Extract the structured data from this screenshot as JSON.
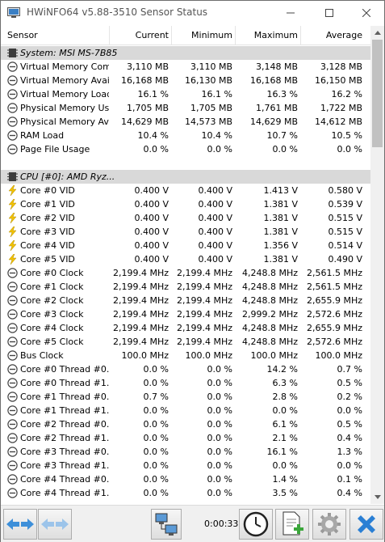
{
  "window": {
    "title": "HWiNFO64 v5.88-3510 Sensor Status"
  },
  "columns": {
    "sensor": "Sensor",
    "current": "Current",
    "minimum": "Minimum",
    "maximum": "Maximum",
    "average": "Average"
  },
  "rows": [
    {
      "type": "group",
      "icon": "chip-icon",
      "name": "System: MSI MS-7B85"
    },
    {
      "type": "sensor",
      "icon": "gauge-icon",
      "name": "Virtual Memory Com...",
      "current": "3,110 MB",
      "minimum": "3,110 MB",
      "maximum": "3,148 MB",
      "average": "3,128 MB"
    },
    {
      "type": "sensor",
      "icon": "gauge-icon",
      "name": "Virtual Memory Avai...",
      "current": "16,168 MB",
      "minimum": "16,130 MB",
      "maximum": "16,168 MB",
      "average": "16,150 MB"
    },
    {
      "type": "sensor",
      "icon": "gauge-icon",
      "name": "Virtual Memory Load",
      "current": "16.1 %",
      "minimum": "16.1 %",
      "maximum": "16.3 %",
      "average": "16.2 %"
    },
    {
      "type": "sensor",
      "icon": "gauge-icon",
      "name": "Physical Memory Used",
      "current": "1,705 MB",
      "minimum": "1,705 MB",
      "maximum": "1,761 MB",
      "average": "1,722 MB"
    },
    {
      "type": "sensor",
      "icon": "gauge-icon",
      "name": "Physical Memory Av...",
      "current": "14,629 MB",
      "minimum": "14,573 MB",
      "maximum": "14,629 MB",
      "average": "14,612 MB"
    },
    {
      "type": "sensor",
      "icon": "gauge-icon",
      "name": "RAM Load",
      "current": "10.4 %",
      "minimum": "10.4 %",
      "maximum": "10.7 %",
      "average": "10.5 %"
    },
    {
      "type": "sensor",
      "icon": "gauge-icon",
      "name": "Page File Usage",
      "current": "0.0 %",
      "minimum": "0.0 %",
      "maximum": "0.0 %",
      "average": "0.0 %"
    },
    {
      "type": "blank"
    },
    {
      "type": "group",
      "icon": "chip-icon",
      "name": "CPU [#0]: AMD Ryz..."
    },
    {
      "type": "sensor",
      "icon": "lightning-icon",
      "name": "Core #0 VID",
      "current": "0.400 V",
      "minimum": "0.400 V",
      "maximum": "1.413 V",
      "average": "0.580 V"
    },
    {
      "type": "sensor",
      "icon": "lightning-icon",
      "name": "Core #1 VID",
      "current": "0.400 V",
      "minimum": "0.400 V",
      "maximum": "1.381 V",
      "average": "0.539 V"
    },
    {
      "type": "sensor",
      "icon": "lightning-icon",
      "name": "Core #2 VID",
      "current": "0.400 V",
      "minimum": "0.400 V",
      "maximum": "1.381 V",
      "average": "0.515 V"
    },
    {
      "type": "sensor",
      "icon": "lightning-icon",
      "name": "Core #3 VID",
      "current": "0.400 V",
      "minimum": "0.400 V",
      "maximum": "1.381 V",
      "average": "0.515 V"
    },
    {
      "type": "sensor",
      "icon": "lightning-icon",
      "name": "Core #4 VID",
      "current": "0.400 V",
      "minimum": "0.400 V",
      "maximum": "1.356 V",
      "average": "0.514 V"
    },
    {
      "type": "sensor",
      "icon": "lightning-icon",
      "name": "Core #5 VID",
      "current": "0.400 V",
      "minimum": "0.400 V",
      "maximum": "1.381 V",
      "average": "0.490 V"
    },
    {
      "type": "sensor",
      "icon": "gauge-icon",
      "name": "Core #0 Clock",
      "current": "2,199.4 MHz",
      "minimum": "2,199.4 MHz",
      "maximum": "4,248.8 MHz",
      "average": "2,561.5 MHz"
    },
    {
      "type": "sensor",
      "icon": "gauge-icon",
      "name": "Core #1 Clock",
      "current": "2,199.4 MHz",
      "minimum": "2,199.4 MHz",
      "maximum": "4,248.8 MHz",
      "average": "2,561.5 MHz"
    },
    {
      "type": "sensor",
      "icon": "gauge-icon",
      "name": "Core #2 Clock",
      "current": "2,199.4 MHz",
      "minimum": "2,199.4 MHz",
      "maximum": "4,248.8 MHz",
      "average": "2,655.9 MHz"
    },
    {
      "type": "sensor",
      "icon": "gauge-icon",
      "name": "Core #3 Clock",
      "current": "2,199.4 MHz",
      "minimum": "2,199.4 MHz",
      "maximum": "2,999.2 MHz",
      "average": "2,572.6 MHz"
    },
    {
      "type": "sensor",
      "icon": "gauge-icon",
      "name": "Core #4 Clock",
      "current": "2,199.4 MHz",
      "minimum": "2,199.4 MHz",
      "maximum": "4,248.8 MHz",
      "average": "2,655.9 MHz"
    },
    {
      "type": "sensor",
      "icon": "gauge-icon",
      "name": "Core #5 Clock",
      "current": "2,199.4 MHz",
      "minimum": "2,199.4 MHz",
      "maximum": "4,248.8 MHz",
      "average": "2,572.6 MHz"
    },
    {
      "type": "sensor",
      "icon": "gauge-icon",
      "name": "Bus Clock",
      "current": "100.0 MHz",
      "minimum": "100.0 MHz",
      "maximum": "100.0 MHz",
      "average": "100.0 MHz"
    },
    {
      "type": "sensor",
      "icon": "gauge-icon",
      "name": "Core #0 Thread #0...",
      "current": "0.0 %",
      "minimum": "0.0 %",
      "maximum": "14.2 %",
      "average": "0.7 %"
    },
    {
      "type": "sensor",
      "icon": "gauge-icon",
      "name": "Core #0 Thread #1...",
      "current": "0.0 %",
      "minimum": "0.0 %",
      "maximum": "6.3 %",
      "average": "0.5 %"
    },
    {
      "type": "sensor",
      "icon": "gauge-icon",
      "name": "Core #1 Thread #0...",
      "current": "0.7 %",
      "minimum": "0.0 %",
      "maximum": "2.8 %",
      "average": "0.2 %"
    },
    {
      "type": "sensor",
      "icon": "gauge-icon",
      "name": "Core #1 Thread #1...",
      "current": "0.0 %",
      "minimum": "0.0 %",
      "maximum": "0.0 %",
      "average": "0.0 %"
    },
    {
      "type": "sensor",
      "icon": "gauge-icon",
      "name": "Core #2 Thread #0...",
      "current": "0.0 %",
      "minimum": "0.0 %",
      "maximum": "6.1 %",
      "average": "0.5 %"
    },
    {
      "type": "sensor",
      "icon": "gauge-icon",
      "name": "Core #2 Thread #1...",
      "current": "0.0 %",
      "minimum": "0.0 %",
      "maximum": "2.1 %",
      "average": "0.4 %"
    },
    {
      "type": "sensor",
      "icon": "gauge-icon",
      "name": "Core #3 Thread #0...",
      "current": "0.0 %",
      "minimum": "0.0 %",
      "maximum": "16.1 %",
      "average": "1.3 %"
    },
    {
      "type": "sensor",
      "icon": "gauge-icon",
      "name": "Core #3 Thread #1...",
      "current": "0.0 %",
      "minimum": "0.0 %",
      "maximum": "0.0 %",
      "average": "0.0 %"
    },
    {
      "type": "sensor",
      "icon": "gauge-icon",
      "name": "Core #4 Thread #0...",
      "current": "0.0 %",
      "minimum": "0.0 %",
      "maximum": "1.4 %",
      "average": "0.1 %"
    },
    {
      "type": "sensor",
      "icon": "gauge-icon",
      "name": "Core #4 Thread #1...",
      "current": "0.0 %",
      "minimum": "0.0 %",
      "maximum": "3.5 %",
      "average": "0.4 %"
    }
  ],
  "toolbar": {
    "timer": "0:00:33",
    "buttons": [
      {
        "name": "navigate-sensors-button",
        "icon": "double-arrow-icon"
      },
      {
        "name": "collapse-sensors-button",
        "icon": "double-arrow-faded-icon"
      },
      {
        "name": "network-button",
        "icon": "network-computers-icon"
      },
      {
        "name": "reset-timer-button",
        "icon": "clock-icon"
      },
      {
        "name": "logging-button",
        "icon": "add-report-icon"
      },
      {
        "name": "settings-button",
        "icon": "gear-icon"
      },
      {
        "name": "close-sensors-button",
        "icon": "close-x-icon"
      }
    ]
  },
  "colors": {
    "group_row_bg": "#d9d9d9",
    "toolbar_bg": "#f0f0f0",
    "arrow_blue": "#3d8fd9",
    "close_blue": "#2a7fd4",
    "bolt_yellow": "#f2c200"
  }
}
